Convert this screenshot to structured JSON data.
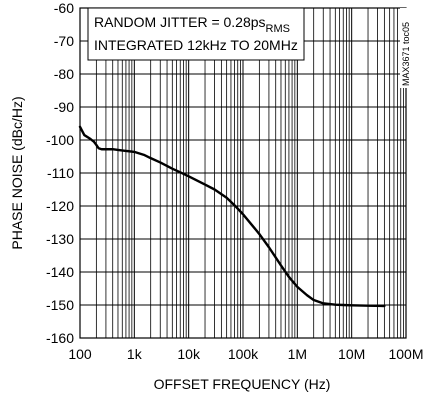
{
  "chart_data": {
    "type": "line",
    "xlabel": "OFFSET FREQUENCY (Hz)",
    "ylabel": "PHASE NOISE (dBc/Hz)",
    "x_scale": "log",
    "xlim": [
      100,
      100000000
    ],
    "ylim": [
      -160,
      -60
    ],
    "x_ticks": [
      {
        "value": 100,
        "label": "100"
      },
      {
        "value": 1000,
        "label": "1k"
      },
      {
        "value": 10000,
        "label": "10k"
      },
      {
        "value": 100000,
        "label": "100k"
      },
      {
        "value": 1000000,
        "label": "1M"
      },
      {
        "value": 10000000,
        "label": "10M"
      },
      {
        "value": 100000000,
        "label": "100M"
      }
    ],
    "y_ticks": [
      {
        "value": -60,
        "label": "-60"
      },
      {
        "value": -70,
        "label": "-70"
      },
      {
        "value": -80,
        "label": "-80"
      },
      {
        "value": -90,
        "label": "-90"
      },
      {
        "value": -100,
        "label": "-100"
      },
      {
        "value": -110,
        "label": "-110"
      },
      {
        "value": -120,
        "label": "-120"
      },
      {
        "value": -130,
        "label": "-130"
      },
      {
        "value": -140,
        "label": "-140"
      },
      {
        "value": -150,
        "label": "-150"
      },
      {
        "value": -160,
        "label": "-160"
      }
    ],
    "grid": true,
    "annotation": {
      "line1_main": "RANDOM JITTER = 0.28ps",
      "line1_sub": "RMS",
      "line2": "INTEGRATED 12kHz TO 20MHz"
    },
    "figure_id": "MAX3671 toc05",
    "series": [
      {
        "x": [
          100,
          120,
          150,
          180,
          200,
          220,
          250,
          300,
          400,
          500,
          700,
          1000,
          1500,
          2000,
          3000,
          5000,
          7000,
          10000,
          20000,
          30000,
          50000,
          70000,
          100000,
          150000,
          200000,
          300000,
          500000,
          700000,
          1000000,
          1500000,
          2000000,
          3000000,
          5000000,
          7000000,
          10000000,
          20000000,
          40000000
        ],
        "y": [
          -96,
          -98.5,
          -99.5,
          -100.5,
          -101.5,
          -102.5,
          -102.8,
          -102.8,
          -102.8,
          -103,
          -103.3,
          -103.6,
          -104.5,
          -105.5,
          -106.8,
          -108.7,
          -109.8,
          -111,
          -113.5,
          -115,
          -117.5,
          -119.8,
          -122.5,
          -126,
          -128.5,
          -132.5,
          -138,
          -141.5,
          -144.5,
          -147,
          -148.5,
          -149.5,
          -149.9,
          -150,
          -150.1,
          -150.2,
          -150.3
        ],
        "color": "#000000"
      }
    ]
  }
}
